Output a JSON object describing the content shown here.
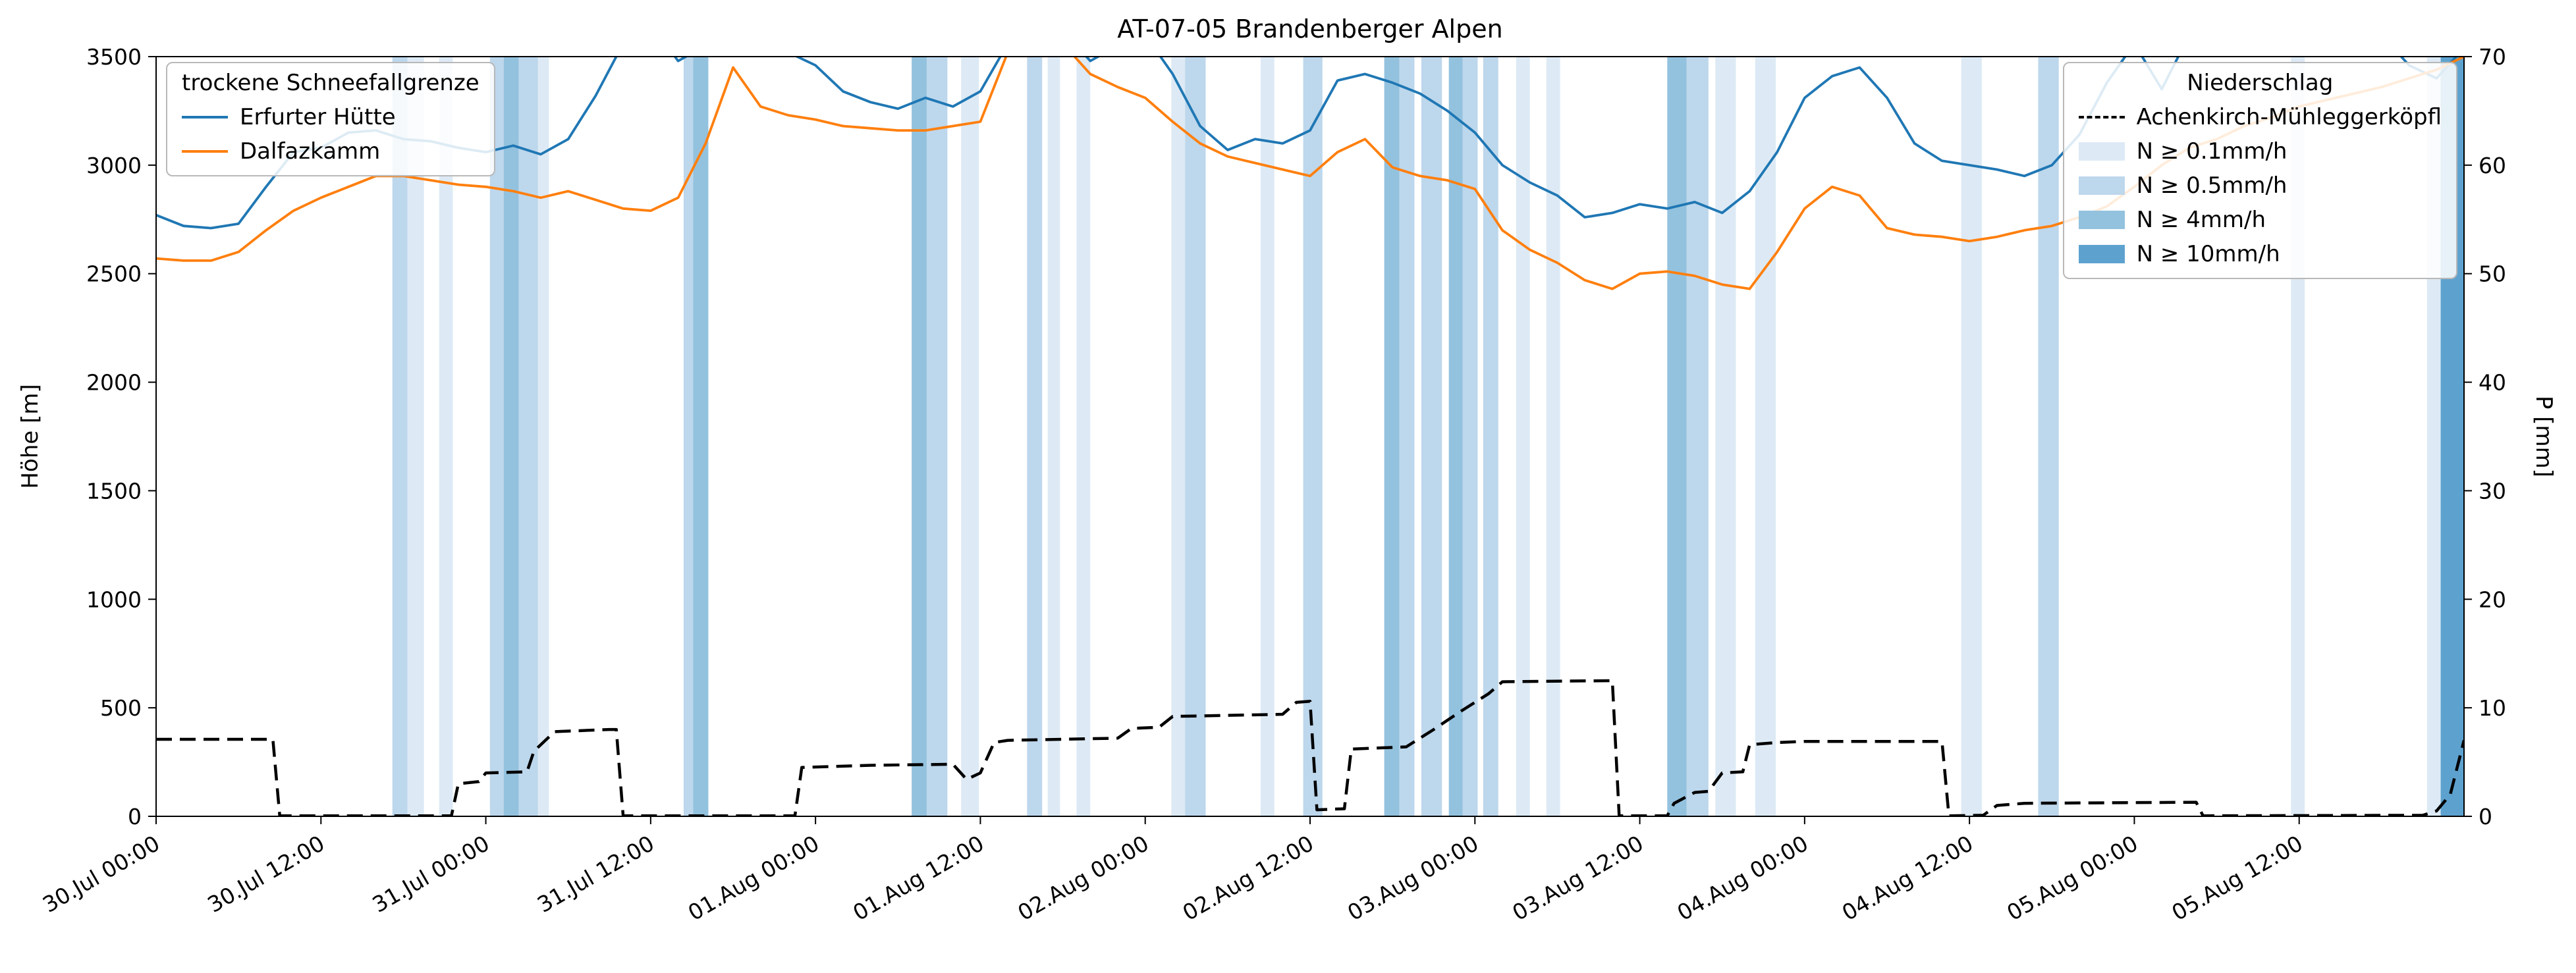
{
  "figure": {
    "title": "AT-07-05 Brandenberger Alpen",
    "ylabel_left": "Höhe [m]",
    "ylabel_right": "P [mm]",
    "background": "#ffffff"
  },
  "legend_snowline": {
    "title": "trockene Schneefallgrenze",
    "entries": [
      {
        "label": "Erfurter Hütte",
        "color": "#1f77b4"
      },
      {
        "label": "Dalfazkamm",
        "color": "#ff7f0e"
      }
    ]
  },
  "legend_precip": {
    "title": "Niederschlag",
    "line_entry": {
      "label": "Achenkirch-Mühleggerköpfl",
      "color": "#000000"
    },
    "band_entries": [
      {
        "label": "N ≥ 0.1mm/h",
        "level": 1
      },
      {
        "label": "N ≥ 0.5mm/h",
        "level": 2
      },
      {
        "label": "N ≥ 4mm/h",
        "level": 3
      },
      {
        "label": "N ≥ 10mm/h",
        "level": 4
      }
    ]
  },
  "chart_data": {
    "type": "line",
    "title": "AT-07-05 Brandenberger Alpen",
    "x_unit": "hours since 30 Jul 00:00",
    "x_range": [
      0,
      168
    ],
    "x_ticks": {
      "positions": [
        0,
        12,
        24,
        36,
        48,
        60,
        72,
        84,
        96,
        108,
        120,
        132,
        144,
        156
      ],
      "labels": [
        "30.Jul 00:00",
        "30.Jul 12:00",
        "31.Jul 00:00",
        "31.Jul 12:00",
        "01.Aug 00:00",
        "01.Aug 12:00",
        "02.Aug 00:00",
        "02.Aug 12:00",
        "03.Aug 00:00",
        "03.Aug 12:00",
        "04.Aug 00:00",
        "04.Aug 12:00",
        "05.Aug 00:00",
        "05.Aug 12:00"
      ]
    },
    "y_left": {
      "label": "Höhe [m]",
      "range": [
        0,
        3500
      ],
      "ticks": [
        0,
        500,
        1000,
        1500,
        2000,
        2500,
        3000,
        3500
      ]
    },
    "y_right": {
      "label": "P [mm]",
      "range": [
        0,
        70
      ],
      "ticks": [
        0,
        10,
        20,
        30,
        40,
        50,
        60,
        70
      ]
    },
    "grid": false,
    "legend_positions": [
      "upper left",
      "upper right"
    ],
    "x_hours": [
      0,
      2,
      4,
      6,
      8,
      10,
      12,
      14,
      16,
      18,
      20,
      22,
      24,
      26,
      28,
      30,
      32,
      34,
      36,
      38,
      40,
      42,
      44,
      46,
      48,
      50,
      52,
      54,
      56,
      58,
      60,
      62,
      64,
      66,
      68,
      70,
      72,
      74,
      76,
      78,
      80,
      82,
      84,
      86,
      88,
      90,
      92,
      94,
      96,
      98,
      100,
      102,
      104,
      106,
      108,
      110,
      112,
      114,
      116,
      118,
      120,
      122,
      124,
      126,
      128,
      130,
      132,
      134,
      136,
      138,
      140,
      142,
      144,
      146,
      148,
      150,
      152,
      154,
      156,
      158,
      160,
      162,
      164,
      166,
      168
    ],
    "series": [
      {
        "name": "Erfurter Hütte",
        "axis": "left",
        "color": "#1f77b4",
        "style": "solid",
        "y": [
          2770,
          2720,
          2710,
          2730,
          2900,
          3060,
          3080,
          3150,
          3160,
          3120,
          3110,
          3080,
          3060,
          3090,
          3050,
          3120,
          3320,
          3560,
          3650,
          3480,
          3550,
          3700,
          3650,
          3520,
          3460,
          3340,
          3290,
          3260,
          3310,
          3270,
          3340,
          3560,
          3700,
          3620,
          3480,
          3550,
          3600,
          3420,
          3180,
          3070,
          3120,
          3100,
          3160,
          3390,
          3420,
          3380,
          3330,
          3250,
          3150,
          3000,
          2920,
          2860,
          2760,
          2780,
          2820,
          2800,
          2830,
          2780,
          2880,
          3060,
          3310,
          3410,
          3450,
          3310,
          3100,
          3020,
          3000,
          2980,
          2950,
          3000,
          3140,
          3380,
          3560,
          3350,
          3600,
          3680,
          3650,
          3700,
          3700,
          3680,
          3700,
          3600,
          3460,
          3400,
          3540
        ]
      },
      {
        "name": "Dalfazkamm",
        "axis": "left",
        "color": "#ff7f0e",
        "style": "solid",
        "y": [
          2570,
          2560,
          2560,
          2600,
          2700,
          2790,
          2850,
          2900,
          2950,
          2950,
          2930,
          2910,
          2900,
          2880,
          2850,
          2880,
          2840,
          2800,
          2790,
          2850,
          3100,
          3450,
          3270,
          3230,
          3210,
          3180,
          3170,
          3160,
          3160,
          3180,
          3200,
          3520,
          3620,
          3560,
          3420,
          3360,
          3310,
          3200,
          3100,
          3040,
          3010,
          2980,
          2950,
          3060,
          3120,
          2990,
          2950,
          2930,
          2890,
          2700,
          2610,
          2550,
          2470,
          2430,
          2500,
          2510,
          2490,
          2450,
          2430,
          2600,
          2800,
          2900,
          2860,
          2710,
          2680,
          2670,
          2650,
          2670,
          2700,
          2720,
          2760,
          2810,
          2900,
          3000,
          3080,
          3120,
          3180,
          3220,
          3270,
          3300,
          3330,
          3360,
          3400,
          3440,
          3500
        ]
      },
      {
        "name": "Achenkirch-Mühleggerköpfl",
        "axis": "right",
        "color": "#000000",
        "style": "dashed",
        "x": [
          0,
          8.5,
          9,
          21.5,
          22,
          23.5,
          24,
          27,
          27.5,
          29,
          33,
          33.5,
          34,
          46.5,
          47,
          52,
          58,
          59,
          60,
          61,
          62,
          70,
          71,
          73,
          74,
          82,
          83,
          84,
          84.5,
          86.5,
          87,
          91,
          93,
          95,
          97,
          98,
          106,
          106.5,
          110,
          110.5,
          112,
          113,
          114,
          115.5,
          116,
          118,
          120,
          130,
          130.5,
          133,
          134,
          136,
          148.5,
          149,
          165,
          166,
          167,
          168
        ],
        "y": [
          7.1,
          7.1,
          0.05,
          0.05,
          3.0,
          3.2,
          4.0,
          4.1,
          6.0,
          7.8,
          8.0,
          8.0,
          0.05,
          0.05,
          4.5,
          4.7,
          4.8,
          3.4,
          4.0,
          6.8,
          7.0,
          7.2,
          8.1,
          8.2,
          9.2,
          9.4,
          10.5,
          10.6,
          0.6,
          0.7,
          6.2,
          6.4,
          8.0,
          9.7,
          11.3,
          12.4,
          12.5,
          0.05,
          0.05,
          1.2,
          2.2,
          2.3,
          4.0,
          4.1,
          6.6,
          6.8,
          6.9,
          6.9,
          0.05,
          0.1,
          1.0,
          1.2,
          1.3,
          0.05,
          0.1,
          0.5,
          2.0,
          7.0
        ]
      }
    ],
    "precip_bands": {
      "base_color": "#4292c6",
      "level_thresholds_mm_per_h": [
        0.1,
        0.5,
        4,
        10
      ],
      "level_colors": [
        "#ddeaf5",
        "#bdd7ec",
        "#93c2de",
        "#5da2cf"
      ],
      "intervals": [
        [
          17.2,
          18.3,
          2
        ],
        [
          18.3,
          19.5,
          1
        ],
        [
          20.6,
          21.6,
          1
        ],
        [
          24.3,
          25.3,
          2
        ],
        [
          25.3,
          26.4,
          3
        ],
        [
          26.4,
          27.8,
          2
        ],
        [
          27.8,
          28.6,
          1
        ],
        [
          38.4,
          39.1,
          2
        ],
        [
          39.1,
          40.2,
          3
        ],
        [
          55.0,
          56.1,
          3
        ],
        [
          56.1,
          57.6,
          2
        ],
        [
          58.6,
          59.9,
          1
        ],
        [
          63.4,
          64.5,
          2
        ],
        [
          64.9,
          65.8,
          1
        ],
        [
          67.0,
          68.0,
          1
        ],
        [
          73.9,
          74.9,
          1
        ],
        [
          74.9,
          76.4,
          2
        ],
        [
          80.4,
          81.4,
          1
        ],
        [
          83.5,
          84.9,
          2
        ],
        [
          89.4,
          90.5,
          3
        ],
        [
          90.5,
          91.6,
          2
        ],
        [
          92.1,
          93.6,
          2
        ],
        [
          94.1,
          95.1,
          3
        ],
        [
          95.1,
          96.2,
          2
        ],
        [
          96.6,
          97.7,
          2
        ],
        [
          99.0,
          100.0,
          1
        ],
        [
          101.2,
          102.2,
          1
        ],
        [
          110.0,
          111.4,
          3
        ],
        [
          111.4,
          113.0,
          2
        ],
        [
          113.5,
          115.0,
          1
        ],
        [
          116.4,
          117.9,
          1
        ],
        [
          131.4,
          132.9,
          1
        ],
        [
          137.0,
          138.5,
          2
        ],
        [
          155.4,
          156.4,
          1
        ],
        [
          165.3,
          166.3,
          1
        ],
        [
          166.3,
          168.0,
          4
        ]
      ]
    }
  }
}
